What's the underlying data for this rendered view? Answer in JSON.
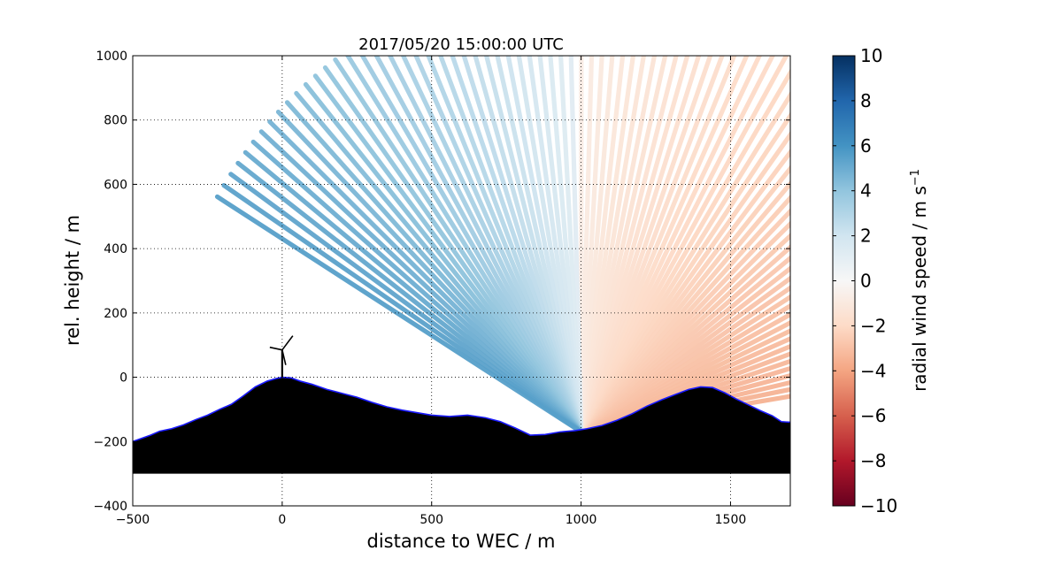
{
  "chart_data": {
    "type": "heatmap",
    "title": "2017/05/20 15:00:00 UTC",
    "xlabel": "distance to WEC / m",
    "ylabel": "rel. height / m",
    "xlim": [
      -500,
      1700
    ],
    "ylim": [
      -400,
      1000
    ],
    "xticks": [
      "−500",
      "0",
      "500",
      "1000",
      "1500"
    ],
    "yticks": [
      "1000",
      "800",
      "600",
      "400",
      "200",
      "0",
      "−200",
      "−400"
    ],
    "grid": true,
    "colorbar": {
      "label": "radial wind speed / m s",
      "label_sup": "−1",
      "range": [
        -10,
        10
      ],
      "ticks": [
        "10",
        "8",
        "6",
        "4",
        "2",
        "0",
        "−2",
        "−4",
        "−6",
        "−8",
        "−10"
      ],
      "colormap": "RdBu"
    },
    "scan": {
      "lidar_x": 1000,
      "lidar_y": -170,
      "min_angle_deg": 9,
      "max_angle_deg": 149,
      "beam_count": 84,
      "max_range": 1420,
      "speed_left": 5.5,
      "speed_right": -3.5
    },
    "wind_turbine": {
      "x": 0,
      "hub_height": 85
    },
    "terrain": [
      [
        -500,
        -200
      ],
      [
        -470,
        -190
      ],
      [
        -440,
        -180
      ],
      [
        -410,
        -168
      ],
      [
        -370,
        -160
      ],
      [
        -330,
        -148
      ],
      [
        -290,
        -132
      ],
      [
        -250,
        -118
      ],
      [
        -210,
        -100
      ],
      [
        -170,
        -84
      ],
      [
        -130,
        -58
      ],
      [
        -90,
        -30
      ],
      [
        -50,
        -12
      ],
      [
        -20,
        -4
      ],
      [
        0,
        0
      ],
      [
        30,
        -2
      ],
      [
        60,
        -12
      ],
      [
        100,
        -22
      ],
      [
        150,
        -38
      ],
      [
        200,
        -50
      ],
      [
        250,
        -62
      ],
      [
        300,
        -78
      ],
      [
        350,
        -92
      ],
      [
        400,
        -102
      ],
      [
        450,
        -110
      ],
      [
        500,
        -118
      ],
      [
        560,
        -122
      ],
      [
        620,
        -118
      ],
      [
        680,
        -126
      ],
      [
        730,
        -138
      ],
      [
        780,
        -158
      ],
      [
        830,
        -180
      ],
      [
        880,
        -178
      ],
      [
        930,
        -170
      ],
      [
        980,
        -166
      ],
      [
        1020,
        -160
      ],
      [
        1070,
        -150
      ],
      [
        1120,
        -134
      ],
      [
        1170,
        -114
      ],
      [
        1220,
        -90
      ],
      [
        1270,
        -70
      ],
      [
        1320,
        -52
      ],
      [
        1360,
        -38
      ],
      [
        1400,
        -30
      ],
      [
        1440,
        -32
      ],
      [
        1480,
        -48
      ],
      [
        1520,
        -68
      ],
      [
        1560,
        -86
      ],
      [
        1600,
        -104
      ],
      [
        1640,
        -120
      ],
      [
        1670,
        -138
      ],
      [
        1700,
        -140
      ]
    ],
    "terrain_floor": -300
  }
}
